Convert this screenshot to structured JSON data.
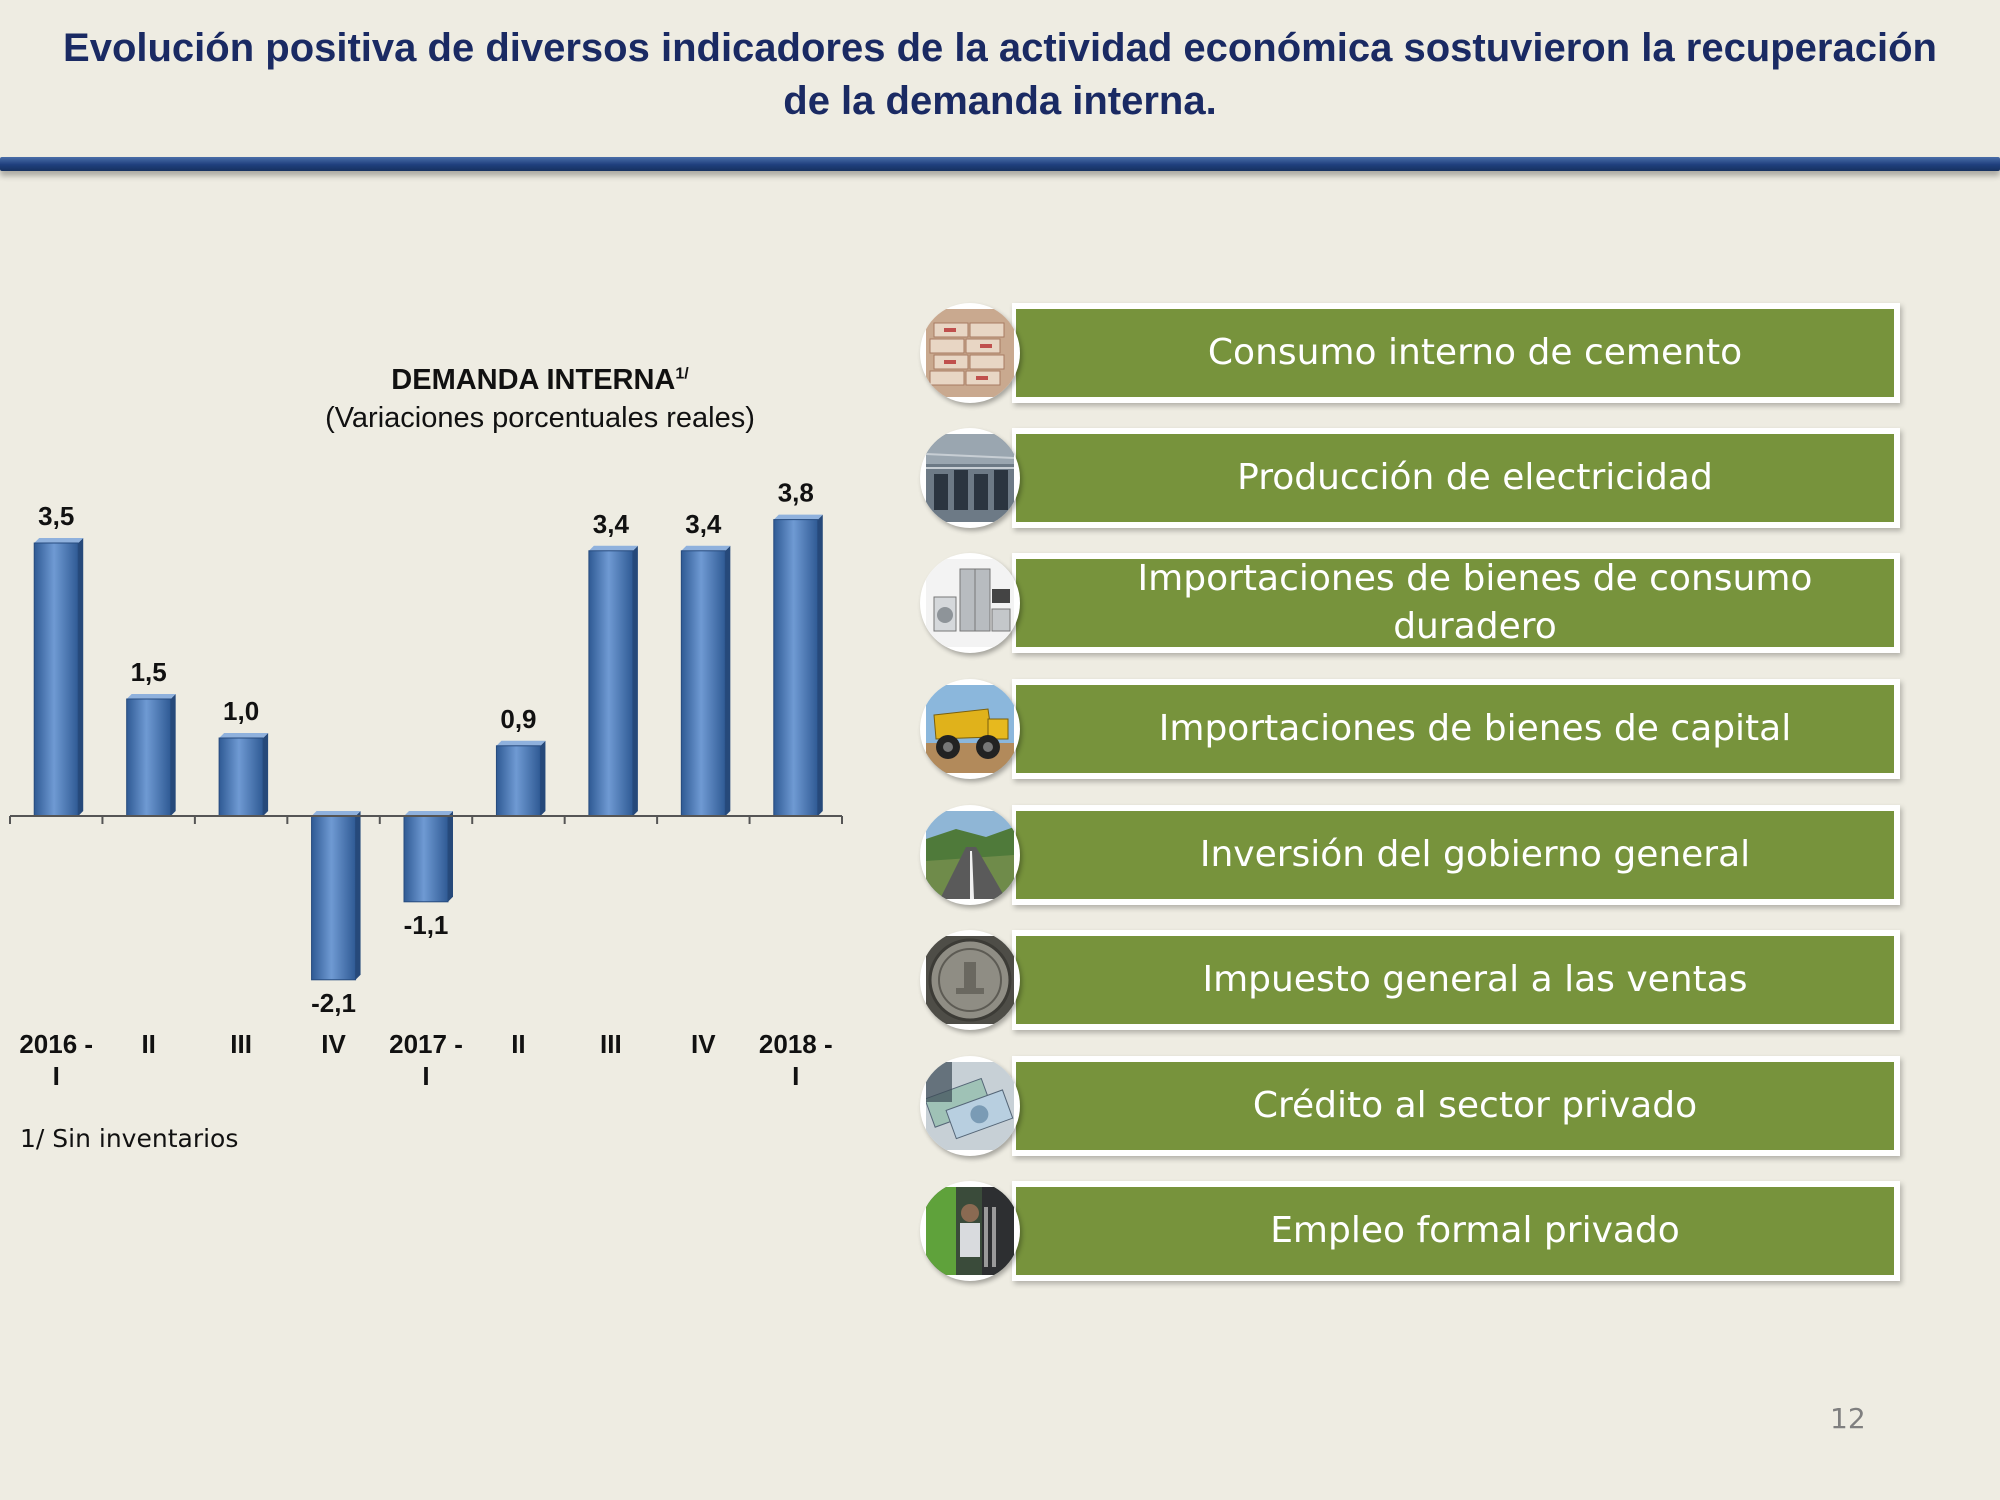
{
  "slide": {
    "title": "Evolución positiva de diversos indicadores de la actividad económica sostuvieron la recuperación de la demanda interna.",
    "page_number": "12"
  },
  "chart_data": {
    "type": "bar",
    "title": "DEMANDA INTERNA",
    "title_superscript": "1/",
    "subtitle": "(Variaciones porcentuales reales)",
    "categories": [
      "2016 - I",
      "II",
      "III",
      "IV",
      "2017 - I",
      "II",
      "III",
      "IV",
      "2018 - I"
    ],
    "values": [
      3.5,
      1.5,
      1.0,
      -2.1,
      -1.1,
      0.9,
      3.4,
      3.4,
      3.8
    ],
    "data_labels": [
      "3,5",
      "1,5",
      "1,0",
      "-2,1",
      "-1,1",
      "0,9",
      "3,4",
      "3,4",
      "3,8"
    ],
    "xlabel": "",
    "ylabel": "",
    "ylim": [
      -2.1,
      3.8
    ],
    "grid": false,
    "bar_color": "#4f81bd",
    "footnote": "1/ Sin inventarios"
  },
  "indicators": [
    {
      "label": "Consumo interno de cemento",
      "icon": "cement-bags-icon"
    },
    {
      "label": "Producción de electricidad",
      "icon": "power-plant-icon"
    },
    {
      "label": "Importaciones de bienes de consumo duradero",
      "icon": "appliances-icon"
    },
    {
      "label": "Importaciones de bienes de capital",
      "icon": "mining-truck-icon"
    },
    {
      "label": "Inversión del gobierno general",
      "icon": "highway-icon"
    },
    {
      "label": "Impuesto general a las ventas",
      "icon": "coin-icon"
    },
    {
      "label": "Crédito al sector privado",
      "icon": "banknotes-icon"
    },
    {
      "label": "Empleo formal privado",
      "icon": "worker-icon"
    }
  ],
  "colors": {
    "background": "#eeece2",
    "title": "#1a2a63",
    "indicator_fill": "#77933c",
    "rule": "#1f3f7d"
  }
}
